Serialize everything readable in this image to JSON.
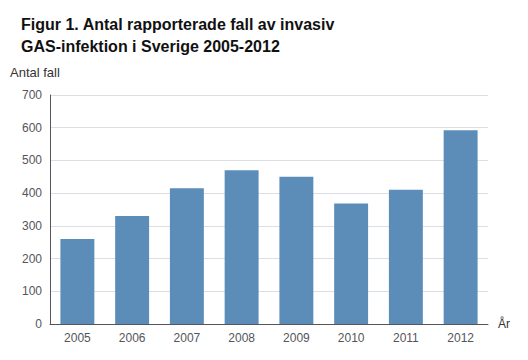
{
  "chart_data": {
    "type": "bar",
    "title": "Figur 1. Antal rapporterade fall av invasiv\nGAS-infektion i Sverige 2005-2012",
    "y_label": "Antal fall",
    "x_label": "År",
    "categories": [
      "2005",
      "2006",
      "2007",
      "2008",
      "2009",
      "2010",
      "2011",
      "2012"
    ],
    "values": [
      260,
      330,
      415,
      470,
      450,
      368,
      410,
      592
    ],
    "color": "#5b8db8",
    "ylim": [
      0,
      700
    ],
    "yticks": [
      0,
      100,
      200,
      300,
      400,
      500,
      600,
      700
    ],
    "grid": true
  }
}
